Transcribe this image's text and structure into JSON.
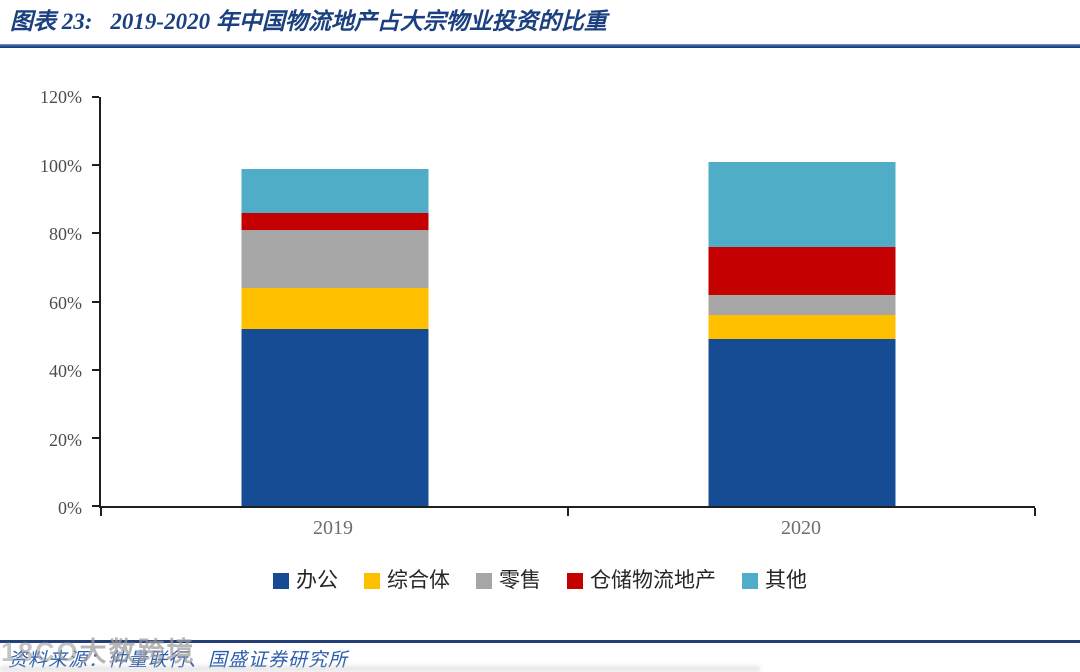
{
  "figure": {
    "label": "图表 23:",
    "title": "2019-2020 年中国物流地产占大宗物业投资的比重"
  },
  "chart_data": {
    "type": "bar",
    "stacked": true,
    "title": "2019-2020 年中国物流地产占大宗物业投资的比重",
    "categories": [
      "2019",
      "2020"
    ],
    "series": [
      {
        "name": "办公",
        "color": "#164C93",
        "values": [
          52,
          49
        ]
      },
      {
        "name": "综合体",
        "color": "#FFC000",
        "values": [
          12,
          7
        ]
      },
      {
        "name": "零售",
        "color": "#A6A6A6",
        "values": [
          17,
          6
        ]
      },
      {
        "name": "仓储物流地产",
        "color": "#C40000",
        "values": [
          5,
          14
        ]
      },
      {
        "name": "其他",
        "color": "#4FADC7",
        "values": [
          13,
          25
        ]
      }
    ],
    "totals": [
      99,
      101
    ],
    "xlabel": "",
    "ylabel": "",
    "ylim": [
      0,
      120
    ],
    "ytick_step": 20,
    "ytick_labels": [
      "0%",
      "20%",
      "40%",
      "60%",
      "80%",
      "100%",
      "120%"
    ],
    "unit": "%",
    "grid": false,
    "legend_position": "bottom"
  },
  "source": {
    "text": "资料来源：仲量联行、国盛证券研究所"
  },
  "watermark": {
    "prefix": "18CO",
    "text": "大数跨境"
  },
  "colors": {
    "title_navy": "#1b4080",
    "rule_navy": "#243f77",
    "axis_black": "#1f1f1f",
    "axis_label_gray": "#4d4d4d",
    "category_label_gray": "#6e6e6e",
    "source_blue": "#2b5cad"
  }
}
